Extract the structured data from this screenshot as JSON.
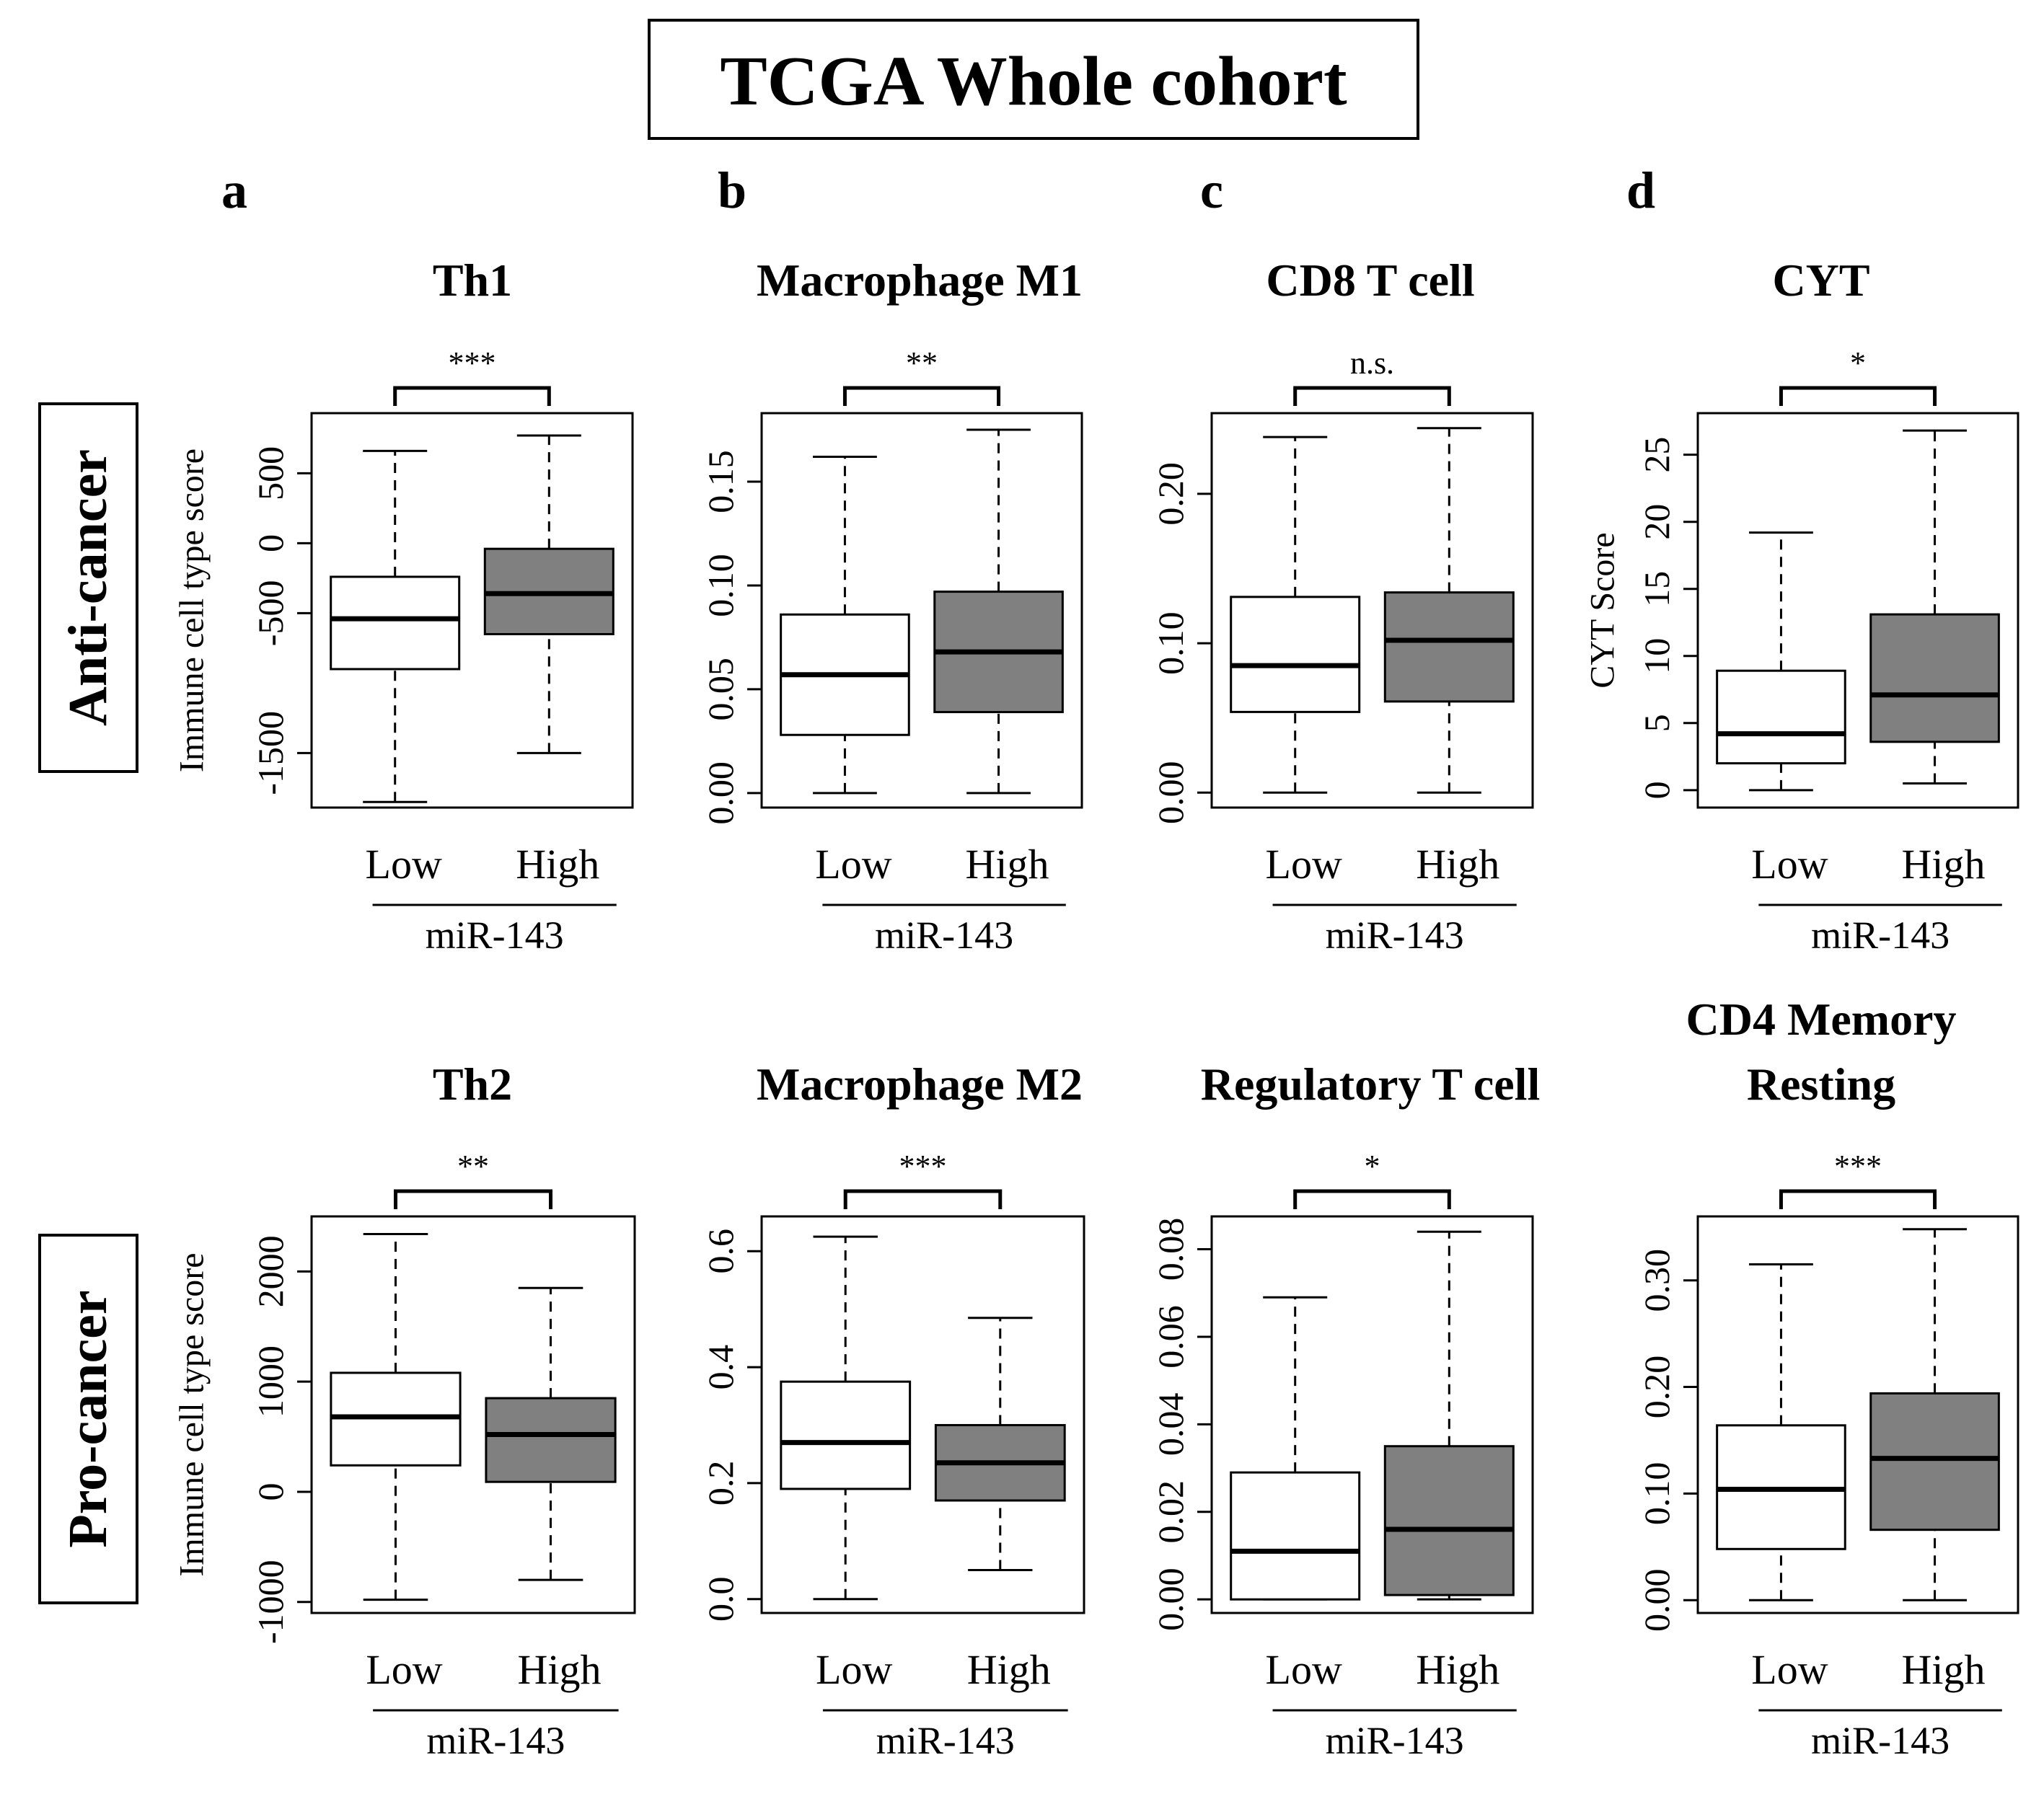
{
  "title": "TCGA Whole cohort",
  "colors": {
    "low_box": "#ffffff",
    "high_box": "#808080",
    "stroke": "#000000"
  },
  "row_labels": [
    "Anti-cancer",
    "Pro-cancer"
  ],
  "panel_letters": [
    "a",
    "b",
    "c",
    "d"
  ],
  "chart_data": [
    {
      "type": "box",
      "panel": "a",
      "row": "Anti-cancer",
      "title": "Th1",
      "ylabel": "Immune cell type score",
      "xlabel": "miR-143",
      "categories": [
        "Low",
        "High"
      ],
      "ylim": [
        -1890,
        930
      ],
      "yticks": [
        -1500,
        -500,
        0,
        500
      ],
      "ytick_labels": [
        "-1500",
        "-500",
        "0",
        "500"
      ],
      "boxes": [
        {
          "category": "Low",
          "whisker_low": -1850,
          "q1": -900,
          "median": -540,
          "q3": -240,
          "whisker_high": 660
        },
        {
          "category": "High",
          "whisker_low": -1500,
          "q1": -650,
          "median": -360,
          "q3": -40,
          "whisker_high": 770
        }
      ],
      "significance": "***"
    },
    {
      "type": "box",
      "panel": "b",
      "row": "Anti-cancer",
      "title": "Macrophage  M1",
      "ylabel": "",
      "xlabel": "miR-143",
      "categories": [
        "Low",
        "High"
      ],
      "ylim": [
        -0.007,
        0.183
      ],
      "yticks": [
        0,
        0.05,
        0.1,
        0.15
      ],
      "ytick_labels": [
        "0.00",
        "0.05",
        "0.10",
        "0.15"
      ],
      "boxes": [
        {
          "category": "Low",
          "whisker_low": 0.0,
          "q1": 0.028,
          "median": 0.057,
          "q3": 0.086,
          "whisker_high": 0.162
        },
        {
          "category": "High",
          "whisker_low": 0.0,
          "q1": 0.039,
          "median": 0.068,
          "q3": 0.097,
          "whisker_high": 0.175
        }
      ],
      "significance": "**"
    },
    {
      "type": "box",
      "panel": "c",
      "row": "Anti-cancer",
      "title": "CD8 T cell",
      "ylabel": "",
      "xlabel": "miR-143",
      "categories": [
        "Low",
        "High"
      ],
      "ylim": [
        -0.01,
        0.254
      ],
      "yticks": [
        0,
        0.1,
        0.2
      ],
      "ytick_labels": [
        "0.00",
        "0.10",
        "0.20"
      ],
      "boxes": [
        {
          "category": "Low",
          "whisker_low": 0.0,
          "q1": 0.054,
          "median": 0.085,
          "q3": 0.131,
          "whisker_high": 0.238
        },
        {
          "category": "High",
          "whisker_low": 0.0,
          "q1": 0.061,
          "median": 0.102,
          "q3": 0.134,
          "whisker_high": 0.244
        }
      ],
      "significance": "n.s."
    },
    {
      "type": "box",
      "panel": "d",
      "row": "Anti-cancer",
      "title": "CYT",
      "ylabel": "CYT Score",
      "xlabel": "miR-143",
      "categories": [
        "Low",
        "High"
      ],
      "ylim": [
        -1.3,
        28.1
      ],
      "yticks": [
        0,
        5,
        10,
        15,
        20,
        25
      ],
      "ytick_labels": [
        "0",
        "5",
        "10",
        "15",
        "20",
        "25"
      ],
      "boxes": [
        {
          "category": "Low",
          "whisker_low": 0.0,
          "q1": 2.0,
          "median": 4.2,
          "q3": 8.9,
          "whisker_high": 19.2
        },
        {
          "category": "High",
          "whisker_low": 0.5,
          "q1": 3.6,
          "median": 7.1,
          "q3": 13.1,
          "whisker_high": 26.8
        }
      ],
      "significance": "*"
    },
    {
      "type": "box",
      "panel": "a",
      "row": "Pro-cancer",
      "title": "Th2",
      "ylabel": "Immune cell type score",
      "xlabel": "miR-143",
      "categories": [
        "Low",
        "High"
      ],
      "ylim": [
        -1100,
        2500
      ],
      "yticks": [
        -1000,
        0,
        1000,
        2000
      ],
      "ytick_labels": [
        "-1000",
        "0",
        "1000",
        "2000"
      ],
      "boxes": [
        {
          "category": "Low",
          "whisker_low": -980,
          "q1": 240,
          "median": 680,
          "q3": 1080,
          "whisker_high": 2340
        },
        {
          "category": "High",
          "whisker_low": -800,
          "q1": 90,
          "median": 520,
          "q3": 850,
          "whisker_high": 1850
        }
      ],
      "significance": "**"
    },
    {
      "type": "box",
      "panel": "b",
      "row": "Pro-cancer",
      "title": "Macrophage  M2",
      "ylabel": "",
      "xlabel": "miR-143",
      "categories": [
        "Low",
        "High"
      ],
      "ylim": [
        -0.024,
        0.66
      ],
      "yticks": [
        0,
        0.2,
        0.4,
        0.6
      ],
      "ytick_labels": [
        "0.0",
        "0.2",
        "0.4",
        "0.6"
      ],
      "boxes": [
        {
          "category": "Low",
          "whisker_low": 0.0,
          "q1": 0.19,
          "median": 0.27,
          "q3": 0.375,
          "whisker_high": 0.625
        },
        {
          "category": "High",
          "whisker_low": 0.05,
          "q1": 0.17,
          "median": 0.235,
          "q3": 0.3,
          "whisker_high": 0.485
        }
      ],
      "significance": "***"
    },
    {
      "type": "box",
      "panel": "c",
      "row": "Pro-cancer",
      "title": "Regulatory T cell",
      "ylabel": "",
      "xlabel": "miR-143",
      "categories": [
        "Low",
        "High"
      ],
      "ylim": [
        -0.0031,
        0.0875
      ],
      "yticks": [
        0,
        0.02,
        0.04,
        0.06,
        0.08
      ],
      "ytick_labels": [
        "0.00",
        "0.02",
        "0.04",
        "0.06",
        "0.08"
      ],
      "boxes": [
        {
          "category": "Low",
          "whisker_low": 0.0,
          "q1": 0.0,
          "median": 0.011,
          "q3": 0.029,
          "whisker_high": 0.069
        },
        {
          "category": "High",
          "whisker_low": 0.0,
          "q1": 0.001,
          "median": 0.016,
          "q3": 0.035,
          "whisker_high": 0.084
        }
      ],
      "significance": "*"
    },
    {
      "type": "box",
      "panel": "d",
      "row": "Pro-cancer",
      "title": "CD4 Memory Resting",
      "title_lines": [
        "CD4 Memory",
        "Resting"
      ],
      "ylabel": "",
      "xlabel": "miR-143",
      "categories": [
        "Low",
        "High"
      ],
      "ylim": [
        -0.012,
        0.36
      ],
      "yticks": [
        0,
        0.1,
        0.2,
        0.3
      ],
      "ytick_labels": [
        "0.00",
        "0.10",
        "0.20",
        "0.30"
      ],
      "boxes": [
        {
          "category": "Low",
          "whisker_low": 0.0,
          "q1": 0.048,
          "median": 0.104,
          "q3": 0.164,
          "whisker_high": 0.315
        },
        {
          "category": "High",
          "whisker_low": 0.0,
          "q1": 0.066,
          "median": 0.133,
          "q3": 0.194,
          "whisker_high": 0.348
        }
      ],
      "significance": "***"
    }
  ]
}
